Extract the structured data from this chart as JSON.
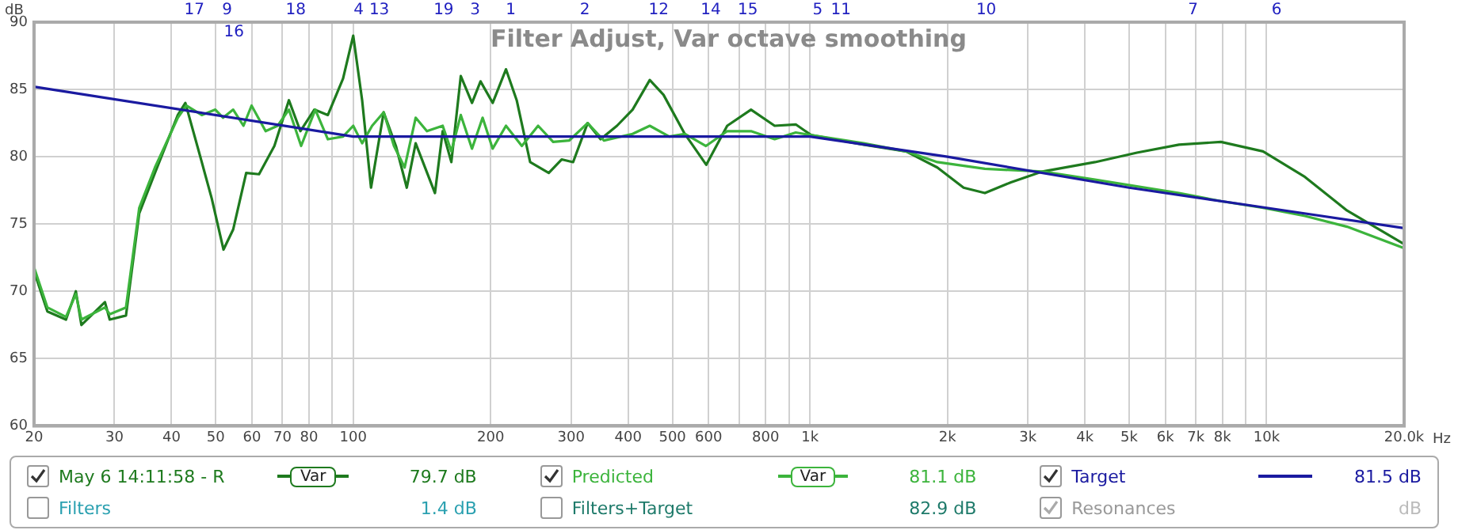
{
  "chart_data": {
    "type": "line",
    "title": "Filter Adjust, Var octave smoothing",
    "ylabel": "dB",
    "xlabel": "Hz",
    "log": "x",
    "grid": true,
    "legend": "bottom",
    "marker": "none",
    "line_style": "solid",
    "xlim": [
      20,
      20000
    ],
    "xticks": [
      20,
      30,
      40,
      50,
      60,
      70,
      80,
      {
        "value": 90,
        "label": null
      },
      100,
      200,
      300,
      400,
      500,
      600,
      {
        "value": 700,
        "label": null
      },
      800,
      {
        "value": 900,
        "label": null
      },
      {
        "value": 1000,
        "label": "1k"
      },
      {
        "value": 2000,
        "label": "2k"
      },
      {
        "value": 3000,
        "label": "3k"
      },
      {
        "value": 4000,
        "label": "4k"
      },
      {
        "value": 5000,
        "label": "5k"
      },
      {
        "value": 6000,
        "label": "6k"
      },
      {
        "value": 7000,
        "label": "7k"
      },
      {
        "value": 8000,
        "label": "8k"
      },
      {
        "value": 9000,
        "label": null
      },
      {
        "value": 10000,
        "label": "10k"
      },
      {
        "value": 20000,
        "label": "20.0k"
      }
    ],
    "ylim": [
      60,
      90
    ],
    "yticks": [
      60,
      65,
      70,
      75,
      80,
      85,
      90
    ],
    "series": [
      {
        "name": "May 6 14:11:58 - R",
        "color": "#1e7a1e",
        "x": [
          20,
          21.4,
          23.5,
          24.7,
          25.4,
          28.6,
          29.3,
          31.8,
          34,
          36.8,
          41.3,
          42.9,
          46.6,
          49,
          52,
          54.6,
          58.3,
          62.2,
          67.2,
          72.3,
          76.6,
          82.2,
          88,
          95,
          100,
          104.6,
          109.4,
          116.6,
          124,
          131,
          137,
          151,
          157,
          164,
          172,
          182,
          190,
          202,
          216,
          228,
          244,
          268,
          286,
          303,
          326,
          348,
          378,
          409,
          446,
          478,
          532,
          593,
          659,
          743,
          837,
          931,
          1007,
          1312,
          1623,
          1901,
          2170,
          2416,
          2755,
          3229,
          4210,
          5200,
          6430,
          7940,
          9820,
          12130,
          15000,
          20000
        ],
        "values": [
          71.5,
          68.5,
          67.9,
          70,
          67.5,
          69.2,
          67.9,
          68.2,
          75.8,
          78.8,
          83.1,
          84,
          79.6,
          76.9,
          73.1,
          74.6,
          78.8,
          78.7,
          80.8,
          84.2,
          81.9,
          83.5,
          83.1,
          85.8,
          89,
          84.2,
          77.7,
          83.3,
          80.8,
          77.7,
          81,
          77.3,
          81.9,
          79.6,
          86,
          84,
          85.6,
          84,
          86.5,
          84.2,
          79.6,
          78.8,
          79.8,
          79.6,
          82.5,
          81.3,
          82.3,
          83.5,
          85.7,
          84.6,
          81.7,
          79.4,
          82.3,
          83.5,
          82.3,
          82.4,
          81.6,
          80.9,
          80.4,
          79.2,
          77.7,
          77.3,
          78.1,
          78.9,
          79.6,
          80.3,
          80.9,
          81.1,
          80.4,
          78.5,
          76,
          73.5
        ]
      },
      {
        "name": "Predicted",
        "color": "#3cb43c",
        "x": [
          20,
          21.4,
          23.5,
          24.7,
          25.4,
          28.6,
          29.3,
          31.8,
          34,
          36.8,
          41.3,
          43.1,
          46.6,
          49.9,
          51.9,
          54.6,
          57.5,
          59.9,
          64.3,
          68.3,
          72.3,
          76.9,
          82.6,
          88,
          95,
          100,
          104.6,
          110,
          116.6,
          122.8,
          129.6,
          137,
          145,
          157,
          164,
          172,
          182,
          192,
          202,
          216,
          234,
          254,
          274,
          297,
          326,
          354,
          409,
          446,
          492,
          532,
          592,
          659,
          743,
          837,
          931,
          1007,
          1312,
          1623,
          1901,
          2416,
          3229,
          4210,
          5200,
          6430,
          7940,
          9820,
          12130,
          15000,
          20000
        ],
        "values": [
          71.8,
          68.8,
          68.1,
          69.8,
          67.9,
          68.8,
          68.3,
          68.8,
          76.2,
          79.2,
          82.9,
          83.8,
          83.1,
          83.5,
          82.9,
          83.5,
          82.3,
          83.8,
          81.9,
          82.3,
          83.5,
          80.8,
          83.5,
          81.3,
          81.5,
          82.3,
          81,
          82.3,
          83.3,
          80.8,
          79.2,
          82.9,
          81.9,
          82.3,
          80.4,
          83.1,
          80.6,
          82.9,
          80.6,
          82.3,
          80.8,
          82.3,
          81.1,
          81.2,
          82.5,
          81.2,
          81.7,
          82.3,
          81.5,
          81.7,
          80.8,
          81.9,
          81.9,
          81.3,
          81.8,
          81.6,
          81,
          80.4,
          79.6,
          79.1,
          78.9,
          78.3,
          77.8,
          77.3,
          76.7,
          76.2,
          75.6,
          74.8,
          73.2
        ]
      },
      {
        "name": "Target",
        "color": "#1a1aa0",
        "x": [
          20,
          100,
          1000,
          2000,
          5000,
          10000,
          20000
        ],
        "values": [
          85.2,
          81.5,
          81.5,
          80,
          77.7,
          76.2,
          74.7
        ]
      }
    ],
    "annotations": [
      "17",
      "9",
      "16",
      "18",
      "4",
      "13",
      "19",
      "3",
      "1",
      "2",
      "12",
      "14",
      "15",
      "5",
      "11",
      "10",
      "7",
      "6",
      "Var",
      "79.7 dB",
      "Var",
      "81.1 dB",
      "81.5 dB",
      "Filters",
      "1.4 dB",
      "Filters+Target",
      "82.9 dB",
      "Resonances",
      "dB"
    ]
  }
}
